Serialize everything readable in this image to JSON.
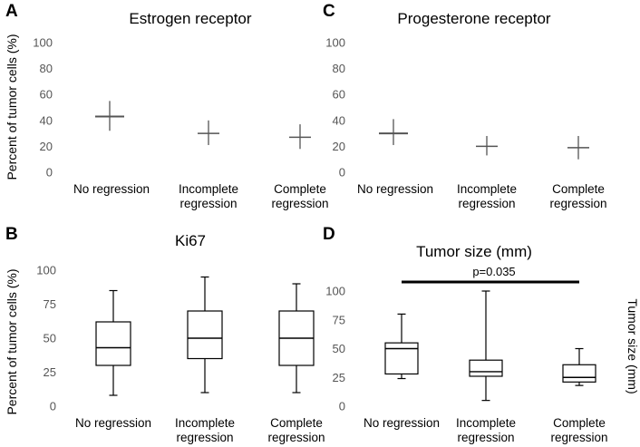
{
  "chart_data": [
    {
      "id": "A",
      "type": "errorbar",
      "letter": "A",
      "title": "Estrogen receptor",
      "ylabel": "Percent of tumor cells (%)",
      "ylim": [
        0,
        100
      ],
      "yticks": [
        "0",
        "20",
        "40",
        "60",
        "80",
        "100"
      ],
      "categories": [
        [
          "No regression"
        ],
        [
          "Incomplete",
          "regression"
        ],
        [
          "Complete",
          "regression"
        ]
      ],
      "series": [
        {
          "mean": [
            43,
            30,
            27
          ],
          "low": [
            32,
            21,
            18
          ],
          "high": [
            55,
            40,
            37
          ]
        }
      ]
    },
    {
      "id": "C",
      "type": "errorbar",
      "letter": "C",
      "title": "Progesterone receptor",
      "ylabel": "",
      "ylim": [
        0,
        100
      ],
      "yticks": [
        "0",
        "20",
        "40",
        "60",
        "80",
        "100"
      ],
      "categories": [
        [
          "No regression"
        ],
        [
          "Incomplete",
          "regression"
        ],
        [
          "Complete",
          "regression"
        ]
      ],
      "series": [
        {
          "mean": [
            30,
            20,
            19
          ],
          "low": [
            21,
            13,
            10
          ],
          "high": [
            41,
            28,
            28
          ]
        }
      ]
    },
    {
      "id": "B",
      "type": "box",
      "letter": "B",
      "title": "Ki67",
      "ylabel": "Percent of tumor cells (%)",
      "ylim": [
        0,
        100
      ],
      "yticks": [
        "0",
        "25",
        "50",
        "75",
        "100"
      ],
      "categories": [
        [
          "No regression"
        ],
        [
          "Incomplete",
          "regression"
        ],
        [
          "Complete",
          "regression"
        ]
      ],
      "boxes": [
        {
          "min": 8,
          "q1": 30,
          "median": 43,
          "q3": 62,
          "max": 85
        },
        {
          "min": 10,
          "q1": 35,
          "median": 50,
          "q3": 70,
          "max": 95
        },
        {
          "min": 10,
          "q1": 30,
          "median": 50,
          "q3": 70,
          "max": 90
        }
      ]
    },
    {
      "id": "D",
      "type": "box",
      "letter": "D",
      "title": "Tumor size (mm)",
      "ylabel": "Tumor size (mm)",
      "ylim": [
        0,
        100
      ],
      "yticks": [
        "0",
        "25",
        "50",
        "75",
        "100"
      ],
      "categories": [
        [
          "No regression"
        ],
        [
          "Incomplete",
          "regression"
        ],
        [
          "Complete",
          "regression"
        ]
      ],
      "boxes": [
        {
          "min": 24,
          "q1": 28,
          "median": 50,
          "q3": 55,
          "max": 80
        },
        {
          "min": 5,
          "q1": 26,
          "median": 30,
          "q3": 40,
          "max": 100
        },
        {
          "min": 18,
          "q1": 21,
          "median": 25,
          "q3": 36,
          "max": 50
        }
      ],
      "annotation": {
        "text": "p=0.035",
        "from": 0,
        "to": 2
      }
    }
  ]
}
